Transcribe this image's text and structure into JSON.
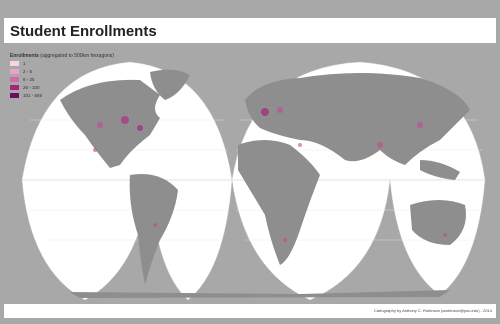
{
  "header": {
    "title": "Student Enrollments"
  },
  "legend": {
    "title": "Enrollments",
    "subtitle": "(aggregated to 500km hexagons)",
    "items": [
      {
        "label": "1",
        "color": "#f6d3e6"
      },
      {
        "label": "2 - 5",
        "color": "#e7a3c8"
      },
      {
        "label": "6 - 25",
        "color": "#d36aa8"
      },
      {
        "label": "26 - 100",
        "color": "#a7237f"
      },
      {
        "label": "101 - 569",
        "color": "#6a0f5e"
      }
    ]
  },
  "credit": "Cartography by Anthony C. Robinson (arobinson@psu.edu) - 2014"
}
